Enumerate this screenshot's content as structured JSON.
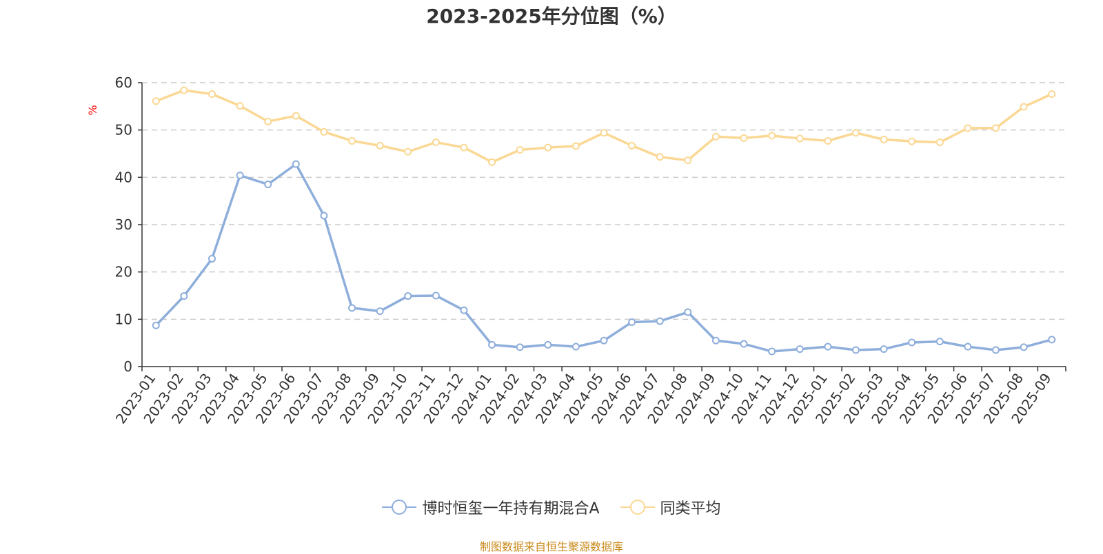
{
  "chart_data": {
    "type": "line",
    "title": "2023-2025年分位图（%）",
    "ylabel": "%",
    "ylim": [
      0,
      60
    ],
    "yticks": [
      0,
      10,
      20,
      30,
      40,
      50,
      60
    ],
    "grid": true,
    "legend_position": "bottom-center",
    "categories": [
      "2023-01",
      "2023-02",
      "2023-03",
      "2023-04",
      "2023-05",
      "2023-06",
      "2023-07",
      "2023-08",
      "2023-09",
      "2023-10",
      "2023-11",
      "2023-12",
      "2024-01",
      "2024-02",
      "2024-03",
      "2024-04",
      "2024-05",
      "2024-06",
      "2024-07",
      "2024-08",
      "2024-09",
      "2024-10",
      "2024-11",
      "2024-12",
      "2025-01",
      "2025-02",
      "2025-03",
      "2025-04",
      "2025-05",
      "2025-06",
      "2025-07",
      "2025-08",
      "2025-09"
    ],
    "series": [
      {
        "name": "博时恒玺一年持有期混合A",
        "color": "#8eaedb",
        "values": [
          8.7,
          14.9,
          22.8,
          40.4,
          38.5,
          42.8,
          31.9,
          12.4,
          11.7,
          14.9,
          15.0,
          11.9,
          4.6,
          4.1,
          4.6,
          4.2,
          5.5,
          9.4,
          9.6,
          11.5,
          5.5,
          4.8,
          3.2,
          3.7,
          4.2,
          3.5,
          3.7,
          5.1,
          5.3,
          4.2,
          3.5,
          4.1,
          5.7
        ]
      },
      {
        "name": "同类平均",
        "color": "#fad894",
        "values": [
          56.1,
          58.4,
          57.6,
          55.1,
          51.8,
          53.0,
          49.6,
          47.7,
          46.7,
          45.4,
          47.4,
          46.3,
          43.2,
          45.8,
          46.3,
          46.6,
          49.4,
          46.7,
          44.3,
          43.6,
          48.6,
          48.3,
          48.8,
          48.2,
          47.7,
          49.4,
          48.0,
          47.6,
          47.4,
          50.4,
          50.4,
          54.9,
          57.6
        ]
      }
    ]
  },
  "source_note": "制图数据来自恒生聚源数据库"
}
